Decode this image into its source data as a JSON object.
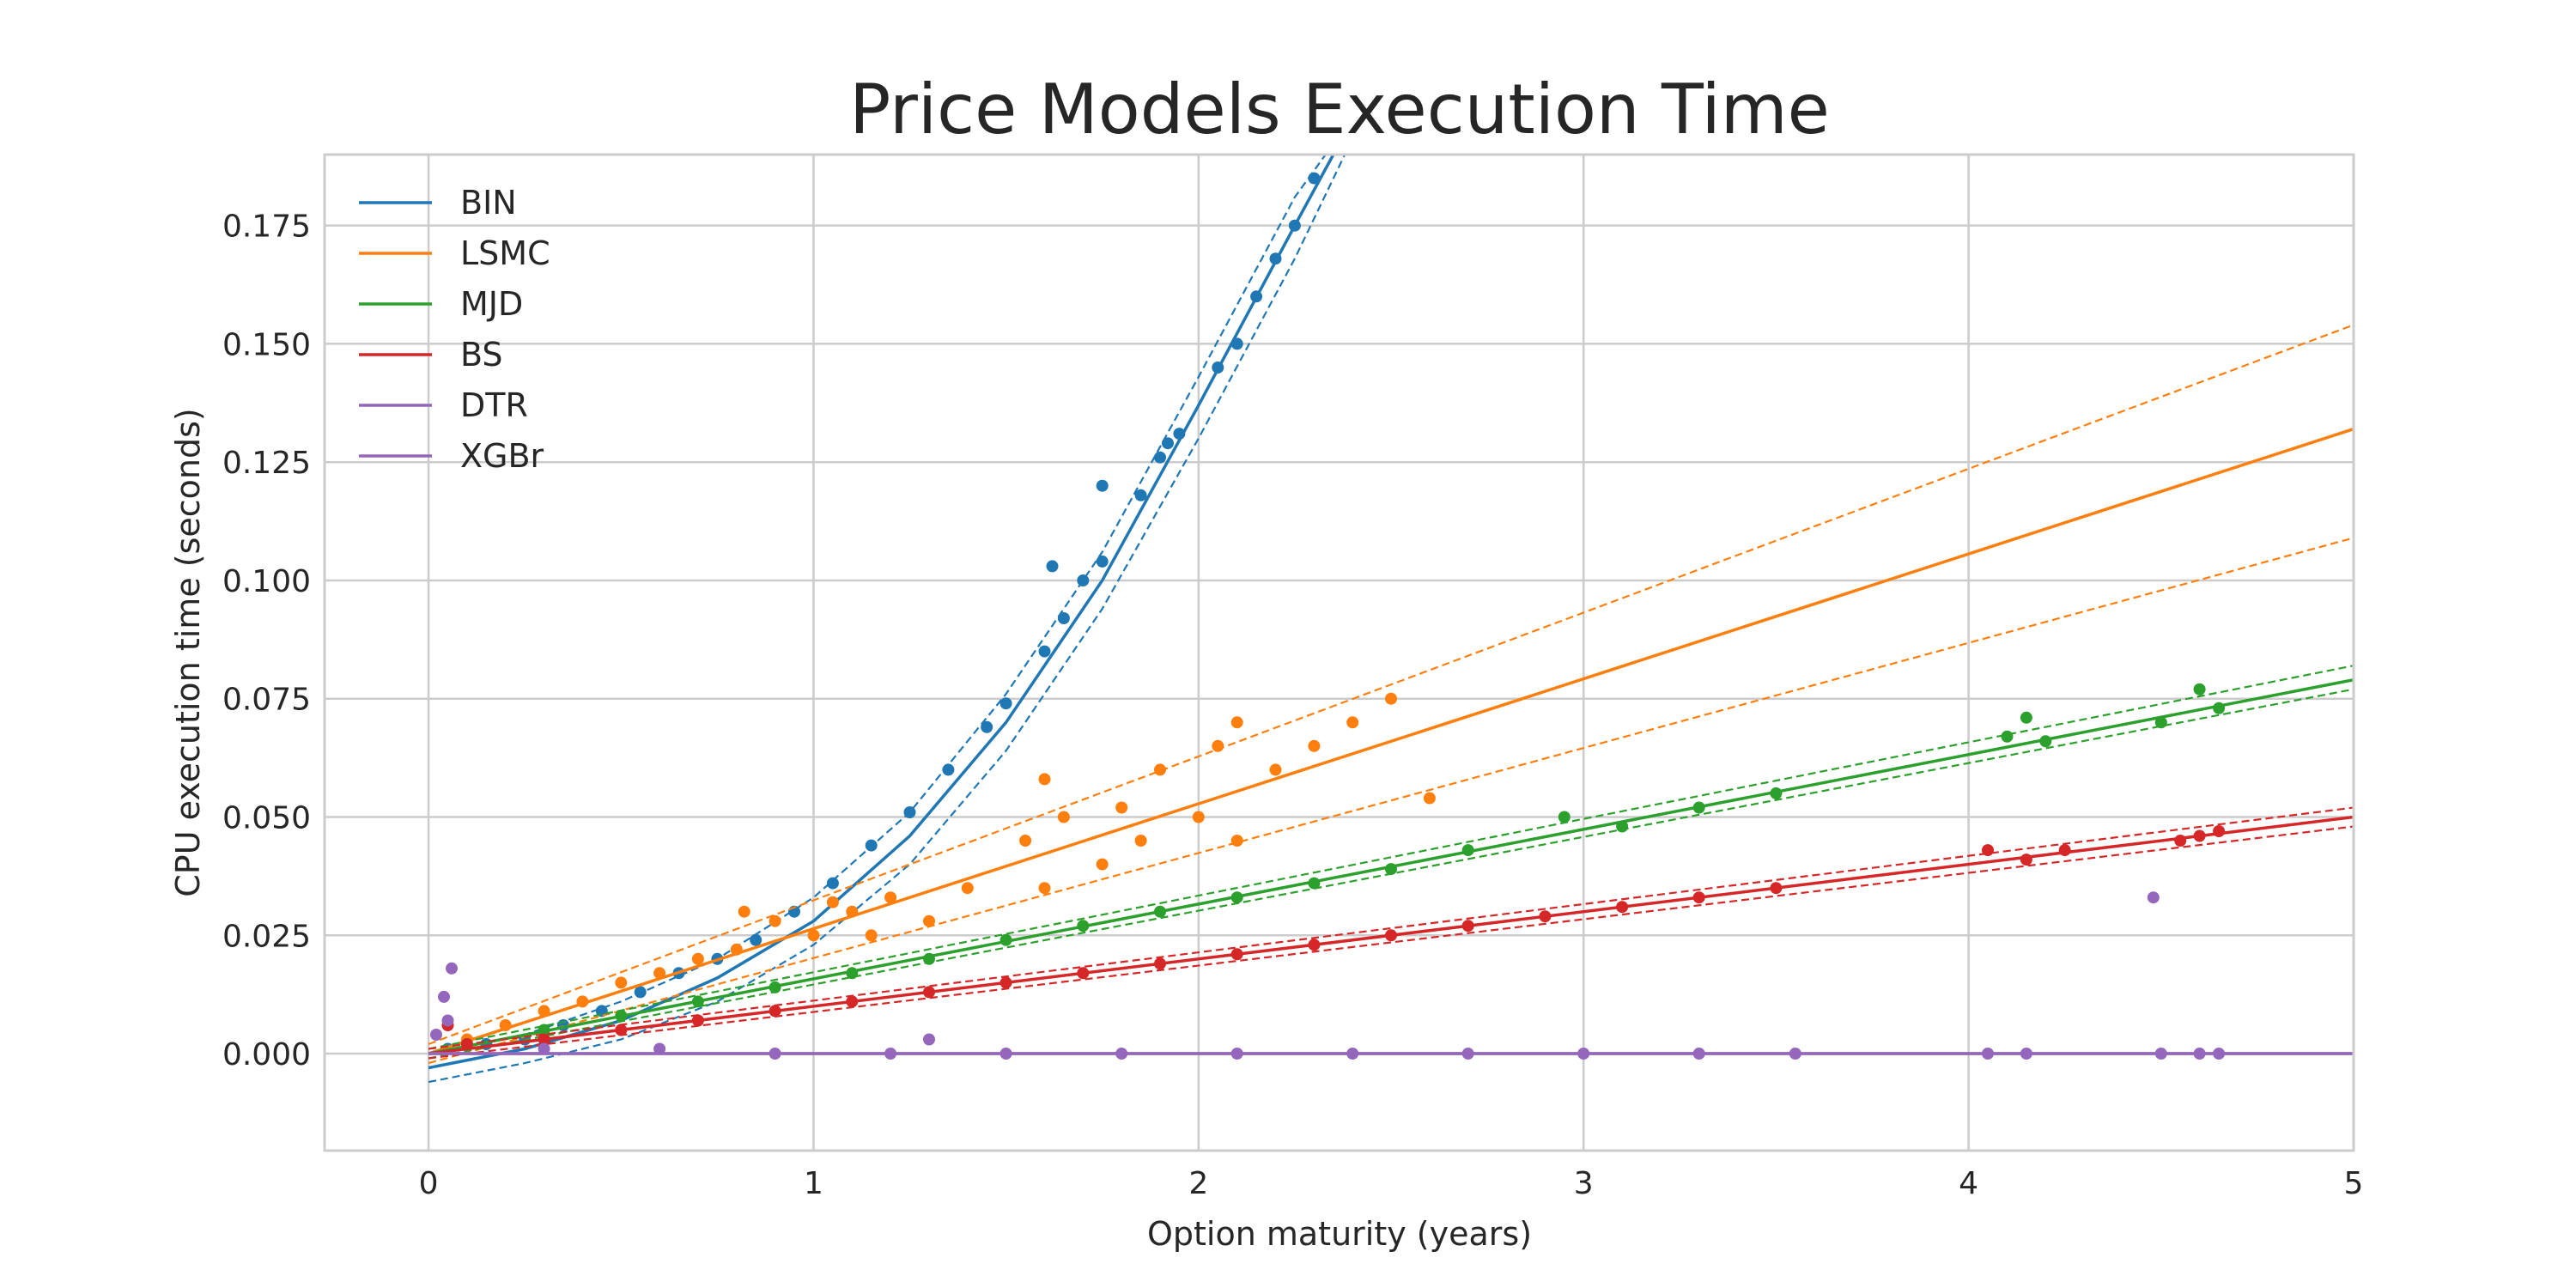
{
  "chart_data": {
    "type": "scatter",
    "title": "Price Models Execution Time",
    "xlabel": "Option maturity (years)",
    "ylabel": "CPU execution time (seconds)",
    "xlim": [
      -0.27,
      5.0
    ],
    "ylim": [
      -0.0205,
      0.19
    ],
    "xticks": [
      0,
      1,
      2,
      3,
      4,
      5
    ],
    "yticks": [
      0.0,
      0.025,
      0.05,
      0.075,
      0.1,
      0.125,
      0.15,
      0.175
    ],
    "ytick_labels": [
      "0.000",
      "0.025",
      "0.050",
      "0.075",
      "0.100",
      "0.125",
      "0.150",
      "0.175"
    ],
    "grid": true,
    "legend_position": "top-left",
    "series": [
      {
        "name": "BIN",
        "color": "#1f77b4",
        "fit": "exponential",
        "fit_line": {
          "x": [
            0,
            0.25,
            0.5,
            0.75,
            1.0,
            1.25,
            1.5,
            1.75,
            2.0,
            2.25,
            2.35
          ],
          "y": [
            -0.003,
            0.001,
            0.007,
            0.016,
            0.028,
            0.046,
            0.07,
            0.1,
            0.137,
            0.175,
            0.19
          ]
        },
        "band_upper": {
          "x": [
            0,
            0.25,
            0.5,
            0.75,
            1.0,
            1.25,
            1.5,
            1.75,
            2.0,
            2.25,
            2.33
          ],
          "y": [
            0.0,
            0.004,
            0.011,
            0.02,
            0.033,
            0.051,
            0.076,
            0.106,
            0.143,
            0.181,
            0.19
          ]
        },
        "band_lower": {
          "x": [
            0,
            0.25,
            0.5,
            0.75,
            1.0,
            1.25,
            1.5,
            1.75,
            2.0,
            2.25,
            2.38
          ],
          "y": [
            -0.006,
            -0.002,
            0.003,
            0.011,
            0.023,
            0.04,
            0.064,
            0.094,
            0.13,
            0.168,
            0.19
          ]
        },
        "points": [
          [
            0.05,
            0.001
          ],
          [
            0.15,
            0.002
          ],
          [
            0.25,
            0.003
          ],
          [
            0.35,
            0.006
          ],
          [
            0.45,
            0.009
          ],
          [
            0.55,
            0.013
          ],
          [
            0.65,
            0.017
          ],
          [
            0.75,
            0.02
          ],
          [
            0.85,
            0.024
          ],
          [
            0.95,
            0.03
          ],
          [
            1.05,
            0.036
          ],
          [
            1.15,
            0.044
          ],
          [
            1.25,
            0.051
          ],
          [
            1.35,
            0.06
          ],
          [
            1.45,
            0.069
          ],
          [
            1.5,
            0.074
          ],
          [
            1.6,
            0.085
          ],
          [
            1.65,
            0.092
          ],
          [
            1.7,
            0.1
          ],
          [
            1.75,
            0.104
          ],
          [
            1.85,
            0.118
          ],
          [
            1.9,
            0.126
          ],
          [
            1.95,
            0.131
          ],
          [
            2.05,
            0.145
          ],
          [
            2.1,
            0.15
          ],
          [
            2.15,
            0.16
          ],
          [
            2.2,
            0.168
          ],
          [
            2.25,
            0.175
          ],
          [
            2.3,
            0.185
          ],
          [
            1.75,
            0.12
          ],
          [
            1.62,
            0.103
          ],
          [
            1.92,
            0.129
          ]
        ]
      },
      {
        "name": "LSMC",
        "color": "#ff7f0e",
        "fit": "linear",
        "fit_line": {
          "x": [
            0,
            5
          ],
          "y": [
            0.0,
            0.132
          ]
        },
        "band_upper": {
          "x": [
            0,
            5
          ],
          "y": [
            0.002,
            0.154
          ]
        },
        "band_lower": {
          "x": [
            0,
            5
          ],
          "y": [
            -0.002,
            0.109
          ]
        },
        "points": [
          [
            0.1,
            0.003
          ],
          [
            0.2,
            0.006
          ],
          [
            0.3,
            0.009
          ],
          [
            0.4,
            0.011
          ],
          [
            0.5,
            0.015
          ],
          [
            0.6,
            0.017
          ],
          [
            0.7,
            0.02
          ],
          [
            0.8,
            0.022
          ],
          [
            0.82,
            0.03
          ],
          [
            0.9,
            0.028
          ],
          [
            1.0,
            0.025
          ],
          [
            1.05,
            0.032
          ],
          [
            1.1,
            0.03
          ],
          [
            1.15,
            0.025
          ],
          [
            1.2,
            0.033
          ],
          [
            1.3,
            0.028
          ],
          [
            1.4,
            0.035
          ],
          [
            1.55,
            0.045
          ],
          [
            1.6,
            0.058
          ],
          [
            1.6,
            0.035
          ],
          [
            1.65,
            0.05
          ],
          [
            1.75,
            0.04
          ],
          [
            1.8,
            0.052
          ],
          [
            1.85,
            0.045
          ],
          [
            1.9,
            0.06
          ],
          [
            2.0,
            0.05
          ],
          [
            2.05,
            0.065
          ],
          [
            2.1,
            0.07
          ],
          [
            2.1,
            0.045
          ],
          [
            2.2,
            0.06
          ],
          [
            2.3,
            0.065
          ],
          [
            2.4,
            0.07
          ],
          [
            2.5,
            0.075
          ],
          [
            2.6,
            0.054
          ]
        ]
      },
      {
        "name": "MJD",
        "color": "#2ca02c",
        "fit": "linear",
        "fit_line": {
          "x": [
            0,
            5
          ],
          "y": [
            0.0,
            0.079
          ]
        },
        "band_upper": {
          "x": [
            0,
            5
          ],
          "y": [
            0.001,
            0.082
          ]
        },
        "band_lower": {
          "x": [
            0,
            5
          ],
          "y": [
            -0.001,
            0.077
          ]
        },
        "points": [
          [
            0.1,
            0.002
          ],
          [
            0.3,
            0.005
          ],
          [
            0.5,
            0.008
          ],
          [
            0.7,
            0.011
          ],
          [
            0.9,
            0.014
          ],
          [
            1.1,
            0.017
          ],
          [
            1.3,
            0.02
          ],
          [
            1.5,
            0.024
          ],
          [
            1.7,
            0.027
          ],
          [
            1.9,
            0.03
          ],
          [
            2.1,
            0.033
          ],
          [
            2.3,
            0.036
          ],
          [
            2.5,
            0.039
          ],
          [
            2.7,
            0.043
          ],
          [
            2.95,
            0.05
          ],
          [
            3.1,
            0.048
          ],
          [
            3.3,
            0.052
          ],
          [
            3.5,
            0.055
          ],
          [
            4.1,
            0.067
          ],
          [
            4.15,
            0.071
          ],
          [
            4.2,
            0.066
          ],
          [
            4.5,
            0.07
          ],
          [
            4.6,
            0.077
          ],
          [
            4.65,
            0.073
          ]
        ]
      },
      {
        "name": "BS",
        "color": "#d62728",
        "fit": "linear",
        "fit_line": {
          "x": [
            0,
            5
          ],
          "y": [
            0.0,
            0.05
          ]
        },
        "band_upper": {
          "x": [
            0,
            5
          ],
          "y": [
            0.001,
            0.052
          ]
        },
        "band_lower": {
          "x": [
            0,
            5
          ],
          "y": [
            -0.001,
            0.048
          ]
        },
        "points": [
          [
            0.05,
            0.006
          ],
          [
            0.1,
            0.002
          ],
          [
            0.3,
            0.003
          ],
          [
            0.5,
            0.005
          ],
          [
            0.7,
            0.007
          ],
          [
            0.9,
            0.009
          ],
          [
            1.1,
            0.011
          ],
          [
            1.3,
            0.013
          ],
          [
            1.5,
            0.015
          ],
          [
            1.7,
            0.017
          ],
          [
            1.9,
            0.019
          ],
          [
            2.1,
            0.021
          ],
          [
            2.3,
            0.023
          ],
          [
            2.5,
            0.025
          ],
          [
            2.7,
            0.027
          ],
          [
            2.9,
            0.029
          ],
          [
            3.1,
            0.031
          ],
          [
            3.3,
            0.033
          ],
          [
            3.5,
            0.035
          ],
          [
            4.05,
            0.043
          ],
          [
            4.15,
            0.041
          ],
          [
            4.25,
            0.043
          ],
          [
            4.55,
            0.045
          ],
          [
            4.6,
            0.046
          ],
          [
            4.65,
            0.047
          ]
        ]
      },
      {
        "name": "DTR",
        "color": "#9467bd",
        "fit": "linear",
        "fit_line": {
          "x": [
            0,
            5
          ],
          "y": [
            0.0,
            0.0
          ]
        },
        "points": [
          [
            0.06,
            0.018
          ],
          [
            0.04,
            0.012
          ],
          [
            0.02,
            0.004
          ],
          [
            0.05,
            0.007
          ],
          [
            0.3,
            0.001
          ],
          [
            0.6,
            0.001
          ],
          [
            0.9,
            0.0
          ],
          [
            1.2,
            0.0
          ],
          [
            1.5,
            0.0
          ],
          [
            1.8,
            0.0
          ],
          [
            2.1,
            0.0
          ],
          [
            2.4,
            0.0
          ],
          [
            2.7,
            0.0
          ],
          [
            3.0,
            0.0
          ],
          [
            3.3,
            0.0
          ],
          [
            3.55,
            0.0
          ],
          [
            4.05,
            0.0
          ],
          [
            4.15,
            0.0
          ],
          [
            4.5,
            0.0
          ],
          [
            4.6,
            0.0
          ],
          [
            4.65,
            0.0
          ],
          [
            1.3,
            0.003
          ],
          [
            4.48,
            0.033
          ]
        ]
      },
      {
        "name": "XGBr",
        "color": "#9467bd",
        "fit": "linear",
        "fit_line": {
          "x": [
            0,
            5
          ],
          "y": [
            0.0,
            0.0
          ]
        },
        "points": []
      }
    ]
  }
}
